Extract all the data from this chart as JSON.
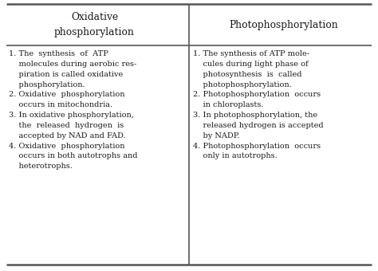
{
  "col1_header": "Oxidative\nphosphorylation",
  "col2_header": "Photophosphorylation",
  "col1_points": [
    [
      "1.",
      " The  synthesis  of  ATP\n    molecules during aerobic res-\n    piration is called oxidative\n    phosphorylation."
    ],
    [
      "2.",
      " Oxidative  phosphorylation\n    occurs in mitochondria."
    ],
    [
      "3.",
      " In oxidative phosphorylation,\n    the  released  hydrogen  is\n    accepted by NAD and FAD."
    ],
    [
      "4.",
      " Oxidative  phosphorylation\n    occurs in both autotrophs and\n    heterotrophs."
    ]
  ],
  "col2_points": [
    [
      "1.",
      " The synthesis of ATP mole-\n    cules during light phase of\n    photosynthesis  is  called\n    photophosphorylation."
    ],
    [
      "2.",
      " Photophosphorylation  occurs\n    in chloroplasts."
    ],
    [
      "3.",
      " In photophosphorylation, the\n    released hydrogen is accepted\n    by NADP."
    ],
    [
      "4.",
      " Photophosphorylation  occurs\n    only in autotrophs."
    ]
  ],
  "bg_color": "#ffffff",
  "text_color": "#1a1a1a",
  "border_color": "#555555",
  "font_size": 7.0,
  "header_font_size": 8.8
}
